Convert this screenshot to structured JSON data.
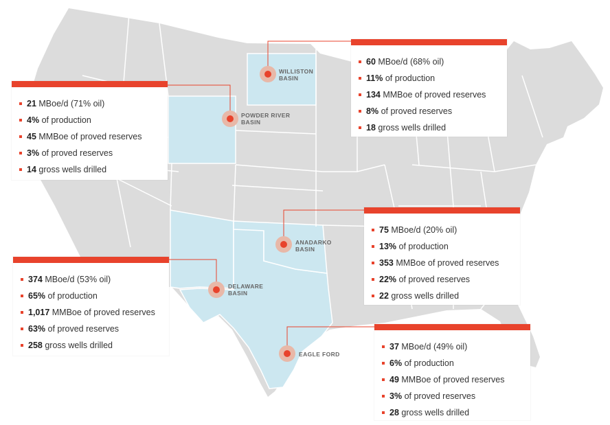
{
  "colors": {
    "land": "#dcdcdc",
    "state_border": "#ffffff",
    "basin_fill": "#cce7f0",
    "accent": "#e8432c",
    "marker_halo": "#e8b8a8"
  },
  "basins": [
    {
      "id": "williston",
      "label_line1": "WILLISTON",
      "label_line2": "BASIN",
      "stats": [
        {
          "value": "60",
          "text": "MBoe/d (68% oil)"
        },
        {
          "value": "11%",
          "text": "of production"
        },
        {
          "value": "134",
          "text": "MMBoe of proved reserves"
        },
        {
          "value": "8%",
          "text": "of proved reserves"
        },
        {
          "value": "18",
          "text": "gross wells drilled"
        }
      ]
    },
    {
      "id": "powder-river",
      "label_line1": "POWDER RIVER",
      "label_line2": "BASIN",
      "stats": [
        {
          "value": "21",
          "text": "MBoe/d (71% oil)"
        },
        {
          "value": "4%",
          "text": "of production"
        },
        {
          "value": "45",
          "text": "MMBoe of proved reserves"
        },
        {
          "value": "3%",
          "text": "of proved reserves"
        },
        {
          "value": "14",
          "text": "gross wells drilled"
        }
      ]
    },
    {
      "id": "anadarko",
      "label_line1": "ANADARKO",
      "label_line2": "BASIN",
      "stats": [
        {
          "value": "75",
          "text": "MBoe/d (20% oil)"
        },
        {
          "value": "13%",
          "text": "of production"
        },
        {
          "value": "353",
          "text": "MMBoe of proved reserves"
        },
        {
          "value": "22%",
          "text": "of proved reserves"
        },
        {
          "value": "22",
          "text": "gross wells drilled"
        }
      ]
    },
    {
      "id": "delaware",
      "label_line1": "DELAWARE",
      "label_line2": "BASIN",
      "stats": [
        {
          "value": "374",
          "text": "MBoe/d (53% oil)"
        },
        {
          "value": "65%",
          "text": "of production"
        },
        {
          "value": "1,017",
          "text": "MMBoe of proved reserves"
        },
        {
          "value": "63%",
          "text": "of proved reserves"
        },
        {
          "value": "258",
          "text": "gross wells drilled"
        }
      ]
    },
    {
      "id": "eagle-ford",
      "label_line1": "EAGLE FORD",
      "label_line2": "",
      "stats": [
        {
          "value": "37",
          "text": "MBoe/d (49% oil)"
        },
        {
          "value": "6%",
          "text": "of production"
        },
        {
          "value": "49",
          "text": "MMBoe of proved reserves"
        },
        {
          "value": "3%",
          "text": "of proved reserves"
        },
        {
          "value": "28",
          "text": "gross wells drilled"
        }
      ]
    }
  ]
}
